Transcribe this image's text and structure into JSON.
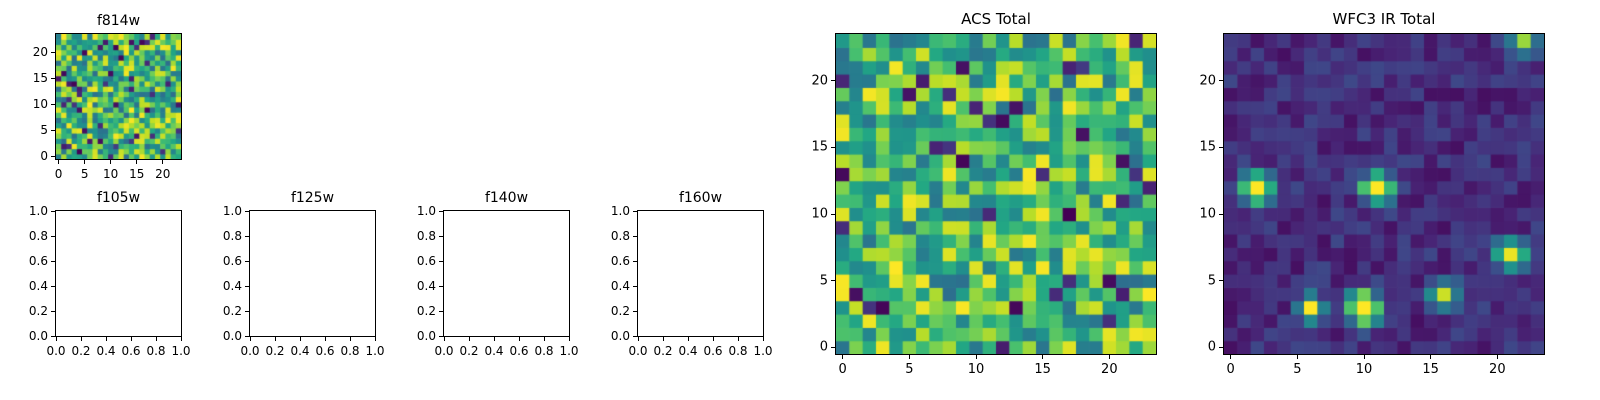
{
  "figure": {
    "background": "#ffffff",
    "axis_color": "#000000",
    "text_color": "#000000"
  },
  "colormap": {
    "name": "viridis",
    "anchors": [
      [
        0.0,
        68,
        1,
        84
      ],
      [
        0.1,
        72,
        36,
        117
      ],
      [
        0.2,
        64,
        67,
        135
      ],
      [
        0.3,
        52,
        94,
        141
      ],
      [
        0.4,
        41,
        120,
        142
      ],
      [
        0.5,
        32,
        144,
        140
      ],
      [
        0.6,
        34,
        167,
        132
      ],
      [
        0.7,
        68,
        190,
        112
      ],
      [
        0.8,
        121,
        209,
        81
      ],
      [
        0.9,
        189,
        222,
        38
      ],
      [
        1.0,
        253,
        231,
        37
      ]
    ]
  },
  "chart_data": [
    {
      "type": "heatmap",
      "title": "f814w",
      "grid": 24,
      "xlim": [
        -0.5,
        23.5
      ],
      "ylim": [
        -0.5,
        23.5
      ],
      "xticks": [
        0,
        5,
        10,
        15,
        20
      ],
      "yticks": [
        0,
        5,
        10,
        15,
        20
      ],
      "colormap": "viridis",
      "style": "bright-noise",
      "seed": 814,
      "dark_fraction": 0.07,
      "value_range": [
        0,
        1
      ],
      "values_note": "unlabeled image data: bright green/yellow viridis noise with sparse dark pixels, reproduced as seeded noise"
    },
    {
      "type": "empty",
      "title": "f105w",
      "xlim": [
        0,
        1
      ],
      "ylim": [
        0,
        1
      ],
      "xticks": [
        "0.0",
        "0.2",
        "0.4",
        "0.6",
        "0.8",
        "1.0"
      ],
      "yticks": [
        "0.0",
        "0.2",
        "0.4",
        "0.6",
        "0.8",
        "1.0"
      ],
      "values_note": "blank axes, no data plotted"
    },
    {
      "type": "empty",
      "title": "f125w",
      "xlim": [
        0,
        1
      ],
      "ylim": [
        0,
        1
      ],
      "xticks": [
        "0.0",
        "0.2",
        "0.4",
        "0.6",
        "0.8",
        "1.0"
      ],
      "yticks": [
        "0.0",
        "0.2",
        "0.4",
        "0.6",
        "0.8",
        "1.0"
      ],
      "values_note": "blank axes, no data plotted"
    },
    {
      "type": "empty",
      "title": "f140w",
      "xlim": [
        0,
        1
      ],
      "ylim": [
        0,
        1
      ],
      "xticks": [
        "0.0",
        "0.2",
        "0.4",
        "0.6",
        "0.8",
        "1.0"
      ],
      "yticks": [
        "0.0",
        "0.2",
        "0.4",
        "0.6",
        "0.8",
        "1.0"
      ],
      "values_note": "blank axes, no data plotted"
    },
    {
      "type": "empty",
      "title": "f160w",
      "xlim": [
        0,
        1
      ],
      "ylim": [
        0,
        1
      ],
      "xticks": [
        "0.0",
        "0.2",
        "0.4",
        "0.6",
        "0.8",
        "1.0"
      ],
      "yticks": [
        "0.0",
        "0.2",
        "0.4",
        "0.6",
        "0.8",
        "1.0"
      ],
      "values_note": "blank axes, no data plotted"
    },
    {
      "type": "heatmap",
      "title": "ACS Total",
      "grid": 24,
      "xlim": [
        -0.5,
        23.5
      ],
      "ylim": [
        -0.5,
        23.5
      ],
      "xticks": [
        0,
        5,
        10,
        15,
        20
      ],
      "yticks": [
        0,
        5,
        10,
        15,
        20
      ],
      "colormap": "viridis",
      "style": "bright-noise",
      "seed": 4242,
      "dark_fraction": 0.05,
      "value_range": [
        0,
        1
      ],
      "values_note": "unlabeled image data: bright green/yellow viridis noise with scattered dark pixels, reproduced as seeded noise"
    },
    {
      "type": "heatmap",
      "title": "WFC3 IR Total",
      "grid": 24,
      "xlim": [
        -0.5,
        23.5
      ],
      "ylim": [
        -0.5,
        23.5
      ],
      "xticks": [
        0,
        5,
        10,
        15,
        20
      ],
      "yticks": [
        0,
        5,
        10,
        15,
        20
      ],
      "colormap": "viridis",
      "style": "dark-sources",
      "seed": 7177,
      "base_range": [
        0.04,
        0.22
      ],
      "value_range": [
        0,
        1
      ],
      "sources": [
        {
          "x": 2,
          "y": 12,
          "amp": 1.3,
          "sigma": 0.75
        },
        {
          "x": 11,
          "y": 12,
          "amp": 1.4,
          "sigma": 0.7
        },
        {
          "x": 6,
          "y": 3,
          "amp": 0.9,
          "sigma": 0.7
        },
        {
          "x": 10,
          "y": 3,
          "amp": 1.3,
          "sigma": 0.8
        },
        {
          "x": 16,
          "y": 4,
          "amp": 0.8,
          "sigma": 0.7
        },
        {
          "x": 21,
          "y": 7,
          "amp": 0.9,
          "sigma": 0.8
        },
        {
          "x": 22,
          "y": 23,
          "amp": 0.7,
          "sigma": 0.7
        }
      ],
      "values_note": "unlabeled image data: dark purple background with several bright compact sources, reproduced as seeded noise plus gaussian sources at listed pixel positions"
    }
  ]
}
